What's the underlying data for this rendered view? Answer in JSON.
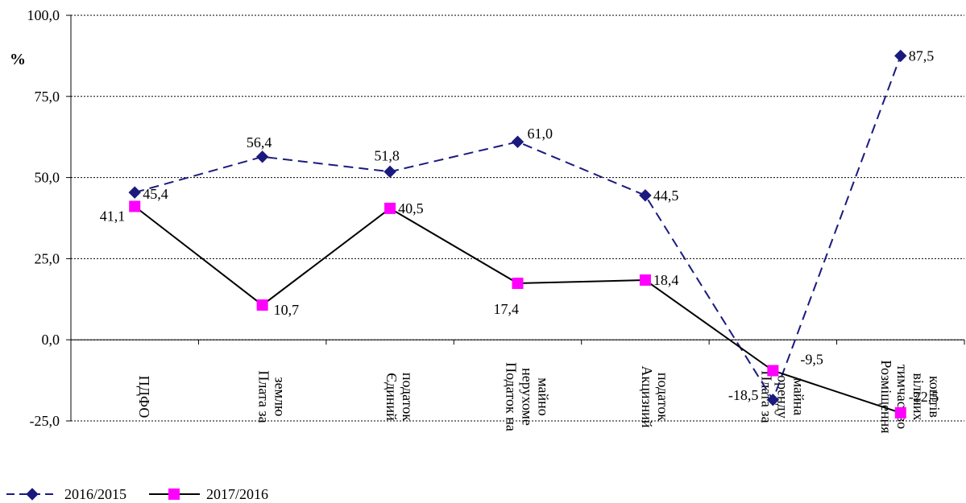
{
  "chart_data": {
    "type": "line",
    "ylabel": "%",
    "ylim": [
      -25,
      100
    ],
    "yticks": [
      "100,0",
      "75,0",
      "50,0",
      "25,0",
      "0,0",
      "-25,0"
    ],
    "ytick_values": [
      100,
      75,
      50,
      25,
      0,
      -25
    ],
    "grid": true,
    "legend_position": "bottom-left",
    "categories": [
      [
        "ПДФО"
      ],
      [
        "Плата за",
        "землю"
      ],
      [
        "Єдиний",
        "податок"
      ],
      [
        "Податок на",
        "нерухоме",
        "майно"
      ],
      [
        "Акцизний",
        "податок"
      ],
      [
        "Плата за",
        "оренду",
        "майна"
      ],
      [
        "Розміщення",
        "тимчасово",
        "вільних",
        "коштів"
      ]
    ],
    "series": [
      {
        "name": "2016/2015",
        "values": [
          45.4,
          56.4,
          51.8,
          61.0,
          44.5,
          -18.5,
          87.5
        ],
        "labels": [
          "45,4",
          "56,4",
          "51,8",
          "61,0",
          "44,5",
          "-18,5",
          "87,5"
        ],
        "color": "#1a1a7e",
        "marker": "diamond",
        "dash": "dashed"
      },
      {
        "name": "2017/2016",
        "values": [
          41.1,
          10.7,
          40.5,
          17.4,
          18.4,
          -9.5,
          -22.5
        ],
        "labels": [
          "41,1",
          "10,7",
          "40,5",
          "17,4",
          "18,4",
          "-9,5",
          "-22,5"
        ],
        "color": "#000000",
        "marker_color": "#ff00ff",
        "marker": "square",
        "dash": "solid"
      }
    ]
  }
}
